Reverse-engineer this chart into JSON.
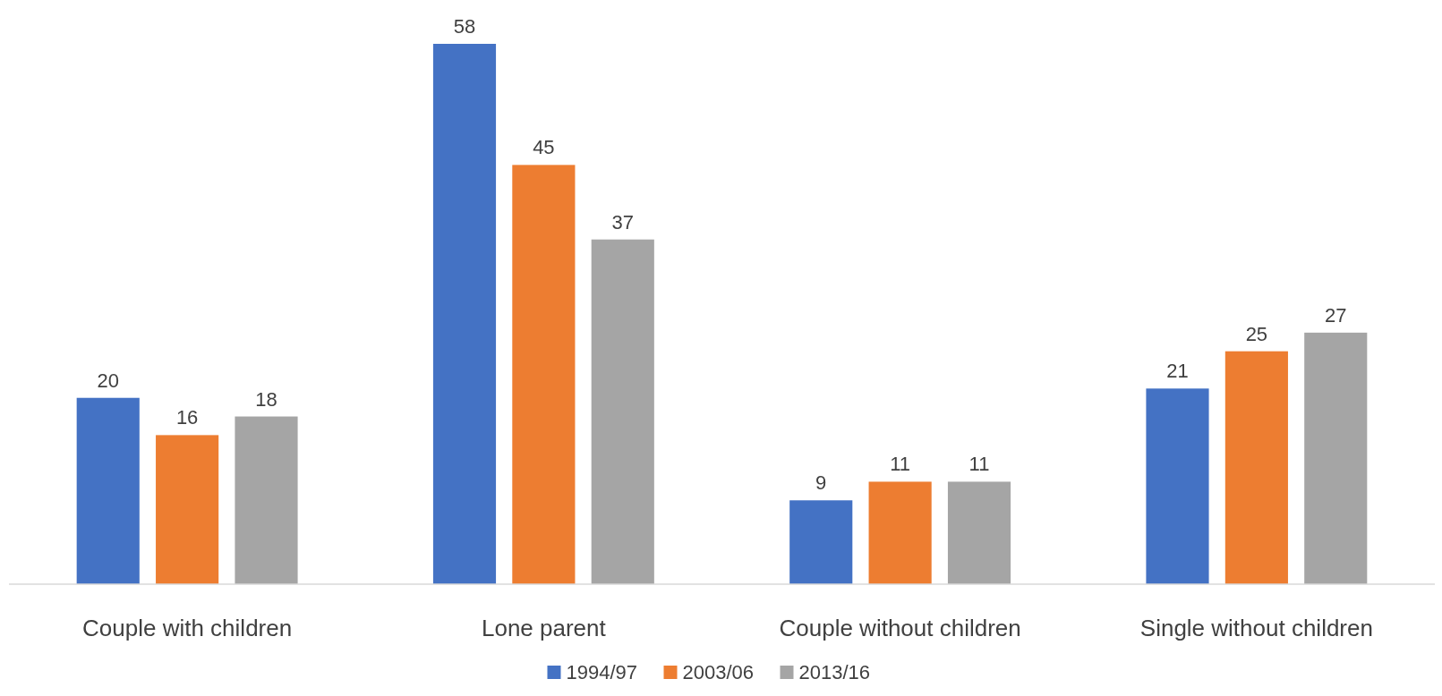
{
  "chart_data": {
    "type": "bar",
    "categories": [
      "Couple with children",
      "Lone parent",
      "Couple without children",
      "Single without children"
    ],
    "series": [
      {
        "name": "1994/97",
        "color": "#4472c4",
        "values": [
          20,
          58,
          9,
          21
        ]
      },
      {
        "name": "2003/06",
        "color": "#ed7d31",
        "values": [
          16,
          45,
          11,
          25
        ]
      },
      {
        "name": "2013/16",
        "color": "#a5a5a5",
        "values": [
          18,
          37,
          11,
          27
        ]
      }
    ],
    "ylim": [
      0,
      58
    ],
    "tick_labels": "x",
    "data_labels": true,
    "legend": "bottom"
  }
}
